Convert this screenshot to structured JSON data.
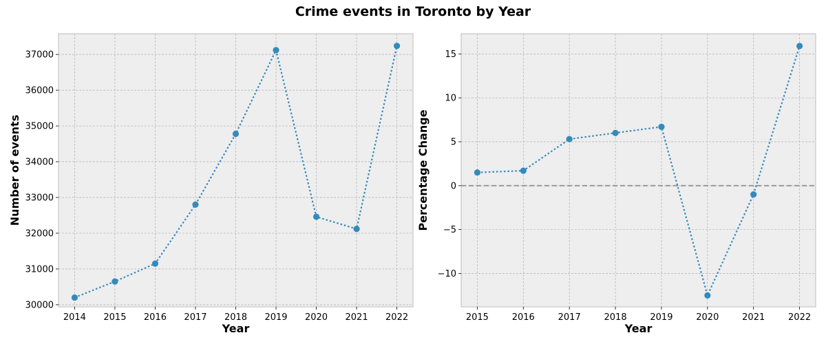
{
  "title": "Crime events in Toronto by Year",
  "colors": {
    "line": "#348abd",
    "panel_bg": "#eeeeee",
    "zero_line": "#999999"
  },
  "chart_data": [
    {
      "type": "line",
      "xlabel": "Year",
      "ylabel": "Number of events",
      "grid": true,
      "x": [
        2014,
        2015,
        2016,
        2017,
        2018,
        2019,
        2020,
        2021,
        2022
      ],
      "y": [
        30200,
        30650,
        31150,
        32800,
        34780,
        37120,
        32460,
        32120,
        37240
      ],
      "xlim": [
        2013.6,
        2022.4
      ],
      "ylim": [
        29940,
        37580
      ],
      "xticks": [
        "2014",
        "2015",
        "2016",
        "2017",
        "2018",
        "2019",
        "2020",
        "2021",
        "2022"
      ],
      "yticks": [
        "30000",
        "31000",
        "32000",
        "33000",
        "34000",
        "35000",
        "36000",
        "37000"
      ]
    },
    {
      "type": "line",
      "xlabel": "Year",
      "ylabel": "Percentage Change",
      "grid": true,
      "reference_line_y": 0,
      "x": [
        2015,
        2016,
        2017,
        2018,
        2019,
        2020,
        2021,
        2022
      ],
      "y": [
        1.5,
        1.7,
        5.3,
        6.0,
        6.7,
        -12.5,
        -1.0,
        15.9
      ],
      "xlim": [
        2014.65,
        2022.35
      ],
      "ylim": [
        -13.8,
        17.3
      ],
      "xticks": [
        "2015",
        "2016",
        "2017",
        "2018",
        "2019",
        "2020",
        "2021",
        "2022"
      ],
      "yticks": [
        "−10",
        "−5",
        "0",
        "5",
        "10",
        "15"
      ]
    }
  ]
}
